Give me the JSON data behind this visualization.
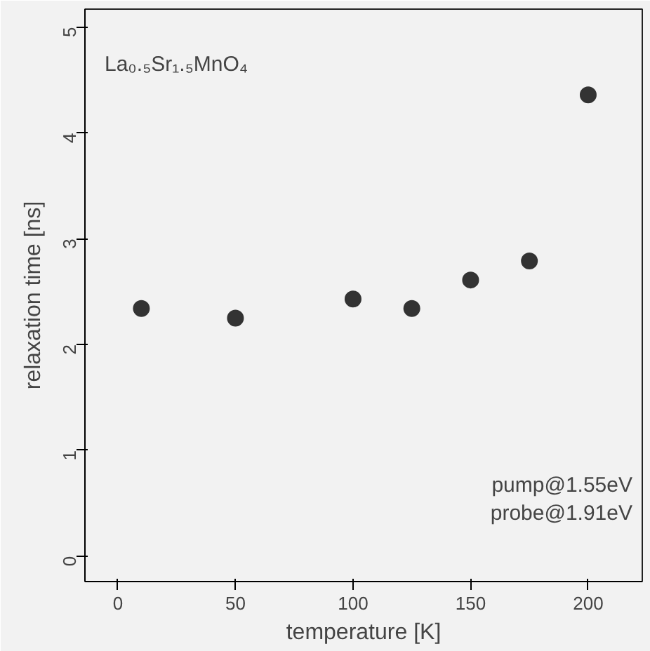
{
  "chart_data": {
    "type": "scatter",
    "xlabel": "temperature [K]",
    "ylabel": "relaxation time [ns]",
    "x": [
      10,
      50,
      100,
      125,
      150,
      175,
      200
    ],
    "values": [
      2.34,
      2.25,
      2.43,
      2.34,
      2.61,
      2.79,
      4.36
    ],
    "color": "#333333",
    "marker": "circle",
    "grid": false,
    "xlim": [
      -14,
      223
    ],
    "ylim": [
      -0.24,
      5.17
    ],
    "xticks": [
      0,
      50,
      100,
      150,
      200
    ],
    "yticks": [
      0,
      1,
      2,
      3,
      4,
      5
    ],
    "annotations": [
      "La₀.₅Sr₁.₅MnO₄",
      "pump@1.55eV",
      "probe@1.91eV"
    ]
  }
}
